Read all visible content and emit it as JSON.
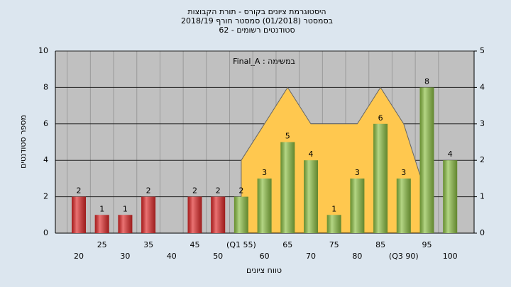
{
  "chart_data": {
    "type": "bar",
    "title": [
      "היסטוגרמת ציונים בקורס - תורת הקבוצות",
      "בסמסטר  (01/2018)  סמסטר חורף 2018/19",
      "סטודנטים רשומים - 62"
    ],
    "annotation": "במשימה : Final_A",
    "x_label": "טווח ציונים",
    "y_label": "מספר סטודנטים",
    "categories": [
      "20",
      "25",
      "30",
      "35",
      "40",
      "45",
      "50",
      "(Q1 55)",
      "60",
      "65",
      "70",
      "75",
      "80",
      "85",
      "(Q3 90)",
      "95",
      "100"
    ],
    "values": [
      2,
      1,
      1,
      2,
      null,
      2,
      2,
      2,
      3,
      5,
      4,
      1,
      3,
      6,
      3,
      8,
      4
    ],
    "colors": [
      "#e02828",
      "#e02828",
      "#e02828",
      "#e02828",
      null,
      "#e02828",
      "#e02828",
      "#8cc043",
      "#8cc043",
      "#8cc043",
      "#8cc043",
      "#8cc043",
      "#8cc043",
      "#8cc043",
      "#8cc043",
      "#8cc043",
      "#8cc043"
    ],
    "area": {
      "axis": "y2",
      "color": "#ffc84f",
      "values": [
        null,
        null,
        null,
        null,
        null,
        null,
        null,
        2,
        3,
        4,
        3,
        3,
        3,
        4,
        3,
        1,
        null
      ]
    },
    "ylim": [
      0,
      10
    ],
    "yticks": [
      0,
      2,
      4,
      6,
      8,
      10
    ],
    "y2lim": [
      0,
      5
    ],
    "y2ticks": [
      0,
      1,
      2,
      3,
      4,
      5
    ],
    "grid": true
  }
}
